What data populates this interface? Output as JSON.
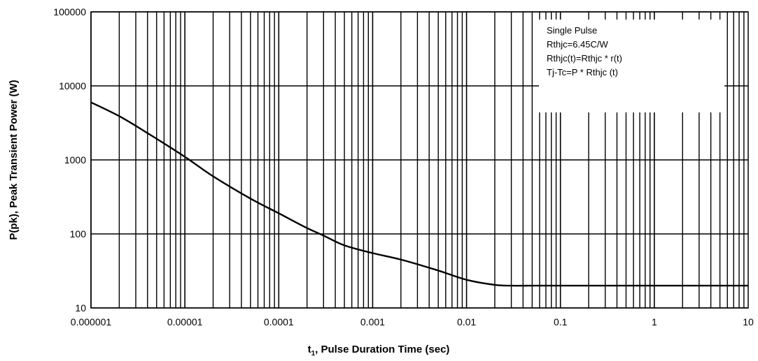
{
  "chart_data": {
    "type": "line",
    "x_scale": "log",
    "y_scale": "log",
    "xlim": [
      1e-06,
      10
    ],
    "ylim": [
      10,
      100000
    ],
    "grid": true,
    "xlabel_main": "t",
    "xlabel_sub": "1",
    "xlabel_rest": ", Pulse Duration Time (sec)",
    "ylabel": "P(pk), Peak Transient Power (W)",
    "x_tick_labels": [
      "0.000001",
      "0.00001",
      "0.0001",
      "0.001",
      "0.01",
      "0.1",
      "1",
      "10"
    ],
    "y_tick_labels": [
      "10",
      "100",
      "1000",
      "10000",
      "100000"
    ],
    "annotation": [
      "Single Pulse",
      "Rthjc=6.45C/W",
      "Rthjc(t)=Rthjc * r(t)",
      "Tj-Tc=P * Rthjc (t)"
    ],
    "series": [
      {
        "x": [
          1e-06,
          2e-06,
          4e-06,
          1e-05,
          2e-05,
          5e-05,
          0.0001,
          0.0002,
          0.0003,
          0.0005,
          0.001,
          0.002,
          0.005,
          0.01,
          0.02,
          0.03,
          0.05,
          0.1,
          1,
          10
        ],
        "y": [
          6000,
          3900,
          2300,
          1100,
          600,
          300,
          190,
          120,
          95,
          70,
          55,
          45,
          32,
          24,
          20.5,
          20,
          20,
          20,
          20,
          20
        ]
      }
    ]
  }
}
